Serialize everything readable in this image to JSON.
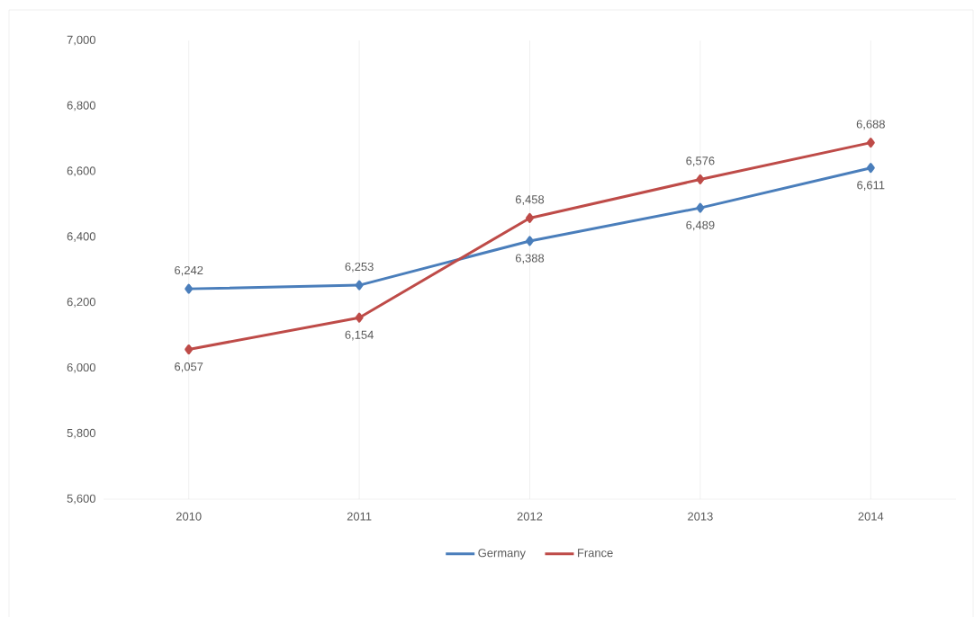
{
  "chart_data": {
    "type": "line",
    "categories": [
      "2010",
      "2011",
      "2012",
      "2013",
      "2014"
    ],
    "series": [
      {
        "name": "Germany",
        "color": "#4a7ebb",
        "values": [
          6242,
          6253,
          6388,
          6489,
          6611
        ],
        "value_labels": [
          "6,242",
          "6,253",
          "6,388",
          "6,489",
          "6,611"
        ]
      },
      {
        "name": "France",
        "color": "#be4b48",
        "values": [
          6057,
          6154,
          6458,
          6576,
          6688
        ],
        "value_labels": [
          "6,057",
          "6,154",
          "6,458",
          "6,576",
          "6,688"
        ]
      }
    ],
    "ylim": [
      5600,
      7000
    ],
    "yticks": [
      {
        "value": 5600,
        "label": "5,600"
      },
      {
        "value": 5800,
        "label": "5,800"
      },
      {
        "value": 6000,
        "label": "6,000"
      },
      {
        "value": 6200,
        "label": "6,200"
      },
      {
        "value": 6400,
        "label": "6,400"
      },
      {
        "value": 6600,
        "label": "6,600"
      },
      {
        "value": 6800,
        "label": "6,800"
      },
      {
        "value": 7000,
        "label": "7,000"
      }
    ],
    "grid": "x",
    "legend": "bottom",
    "marker": "diamond",
    "line_style": "solid"
  }
}
